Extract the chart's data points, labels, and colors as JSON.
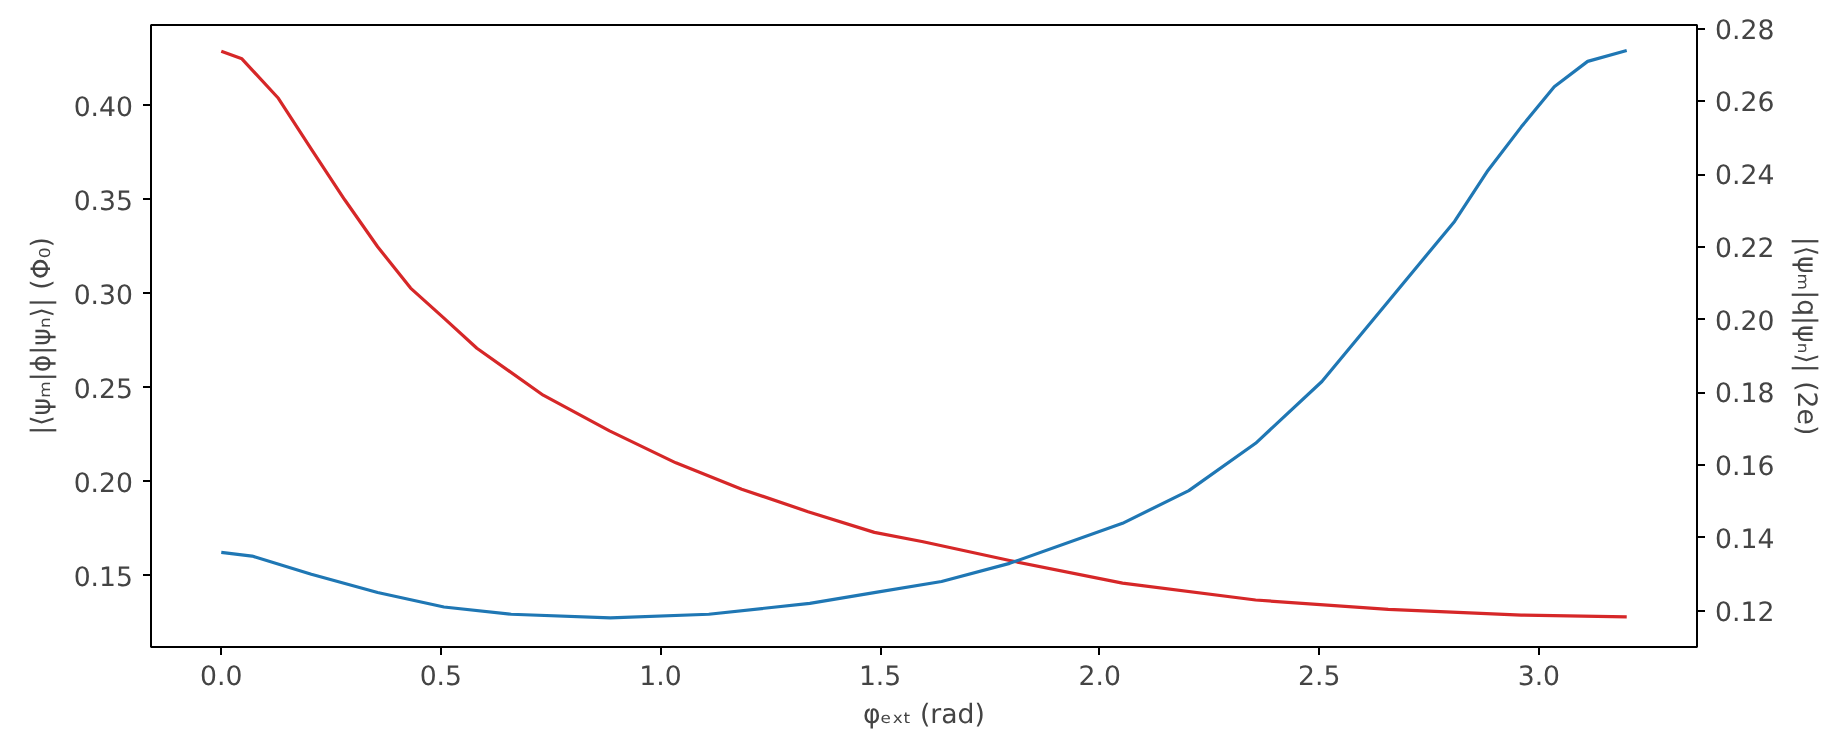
{
  "chart_data": {
    "type": "line",
    "xlabel": "φₑₓₜ (rad)",
    "ylabel": "|⟨ψₘ|ϕ|ψₙ⟩| (Φ₀)",
    "y2label": "|⟨ψₘ|q|ψₙ⟩| (2e)",
    "xlim": [
      -0.16,
      3.36
    ],
    "xticks": [
      {
        "value": 0,
        "label": "0.0"
      },
      0.5,
      {
        "value": 1,
        "label": "1.0"
      },
      1.5,
      {
        "value": 2,
        "label": "2.0"
      },
      2.5,
      {
        "value": 3,
        "label": "3.0"
      }
    ],
    "ylim": [
      0.112,
      0.443
    ],
    "yticks": [
      0.15,
      {
        "value": 0.2,
        "label": "0.20"
      },
      0.25,
      {
        "value": 0.3,
        "label": "0.30"
      },
      0.35,
      {
        "value": 0.4,
        "label": "0.40"
      }
    ],
    "y2lim": [
      0.11,
      0.281
    ],
    "y2ticks": [
      0.12,
      0.14,
      0.16,
      0.18,
      {
        "value": 0.2,
        "label": "0.20"
      },
      0.22,
      0.24,
      0.26,
      0.28
    ],
    "line_style": "solid",
    "series": [
      {
        "color": "#d62728",
        "x": [
          0,
          0.047,
          0.13,
          0.205,
          0.281,
          0.356,
          0.431,
          0.507,
          0.582,
          0.733,
          0.884,
          1.035,
          1.185,
          1.336,
          1.487,
          1.598,
          1.795,
          2.052,
          2.355,
          2.657,
          2.96,
          3.2
        ],
        "values": [
          0.429,
          0.425,
          0.404,
          0.377,
          0.35,
          0.325,
          0.303,
          0.287,
          0.271,
          0.246,
          0.227,
          0.21,
          0.196,
          0.184,
          0.173,
          0.168,
          0.158,
          0.146,
          0.137,
          0.132,
          0.129,
          0.128
        ]
      },
      {
        "color": "#1f77b4",
        "axis": "y2",
        "x": [
          0,
          0.07,
          0.205,
          0.356,
          0.507,
          0.66,
          0.886,
          1.11,
          1.34,
          1.49,
          1.64,
          1.795,
          2.052,
          2.203,
          2.355,
          2.506,
          2.657,
          2.808,
          2.884,
          2.96,
          3.035,
          3.111,
          3.2
        ],
        "values": [
          0.136,
          0.135,
          0.13,
          0.125,
          0.121,
          0.119,
          0.118,
          0.119,
          0.122,
          0.125,
          0.128,
          0.133,
          0.144,
          0.153,
          0.166,
          0.183,
          0.205,
          0.227,
          0.241,
          0.253,
          0.264,
          0.271,
          0.274
        ]
      }
    ]
  }
}
